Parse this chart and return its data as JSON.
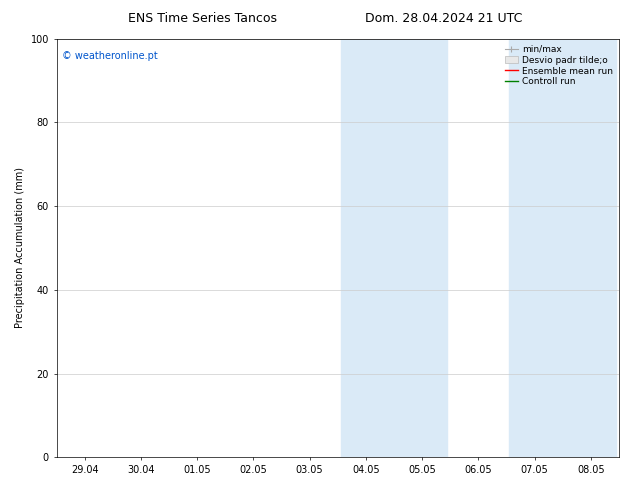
{
  "title_left": "ENS Time Series Tancos",
  "title_right": "Dom. 28.04.2024 21 UTC",
  "ylabel": "Precipitation Accumulation (mm)",
  "ylim": [
    0,
    100
  ],
  "yticks": [
    0,
    20,
    40,
    60,
    80,
    100
  ],
  "x_labels": [
    "29.04",
    "30.04",
    "01.05",
    "02.05",
    "03.05",
    "04.05",
    "05.05",
    "06.05",
    "07.05",
    "08.05"
  ],
  "x_values": [
    0,
    1,
    2,
    3,
    4,
    5,
    6,
    7,
    8,
    9
  ],
  "shade_color": "#daeaf7",
  "shade1_xstart": 4.5,
  "shade1_xend": 5.5,
  "shade2_xstart": 5.5,
  "shade2_xend": 6.5,
  "shade3_xstart": 7.5,
  "shade3_xend": 8.5,
  "shade4_xstart": 8.5,
  "shade4_xend": 9.5,
  "watermark_text": "© weatheronline.pt",
  "watermark_color": "#0055cc",
  "bg_color": "#ffffff",
  "font_size": 7,
  "title_fontsize": 9,
  "legend_label1": "min/max",
  "legend_label2": "Desvio padr tilde;o",
  "legend_label3": "Ensemble mean run",
  "legend_label4": "Controll run",
  "legend_color1": "#aaaaaa",
  "legend_color2": "#cccccc",
  "legend_color3": "red",
  "legend_color4": "green"
}
